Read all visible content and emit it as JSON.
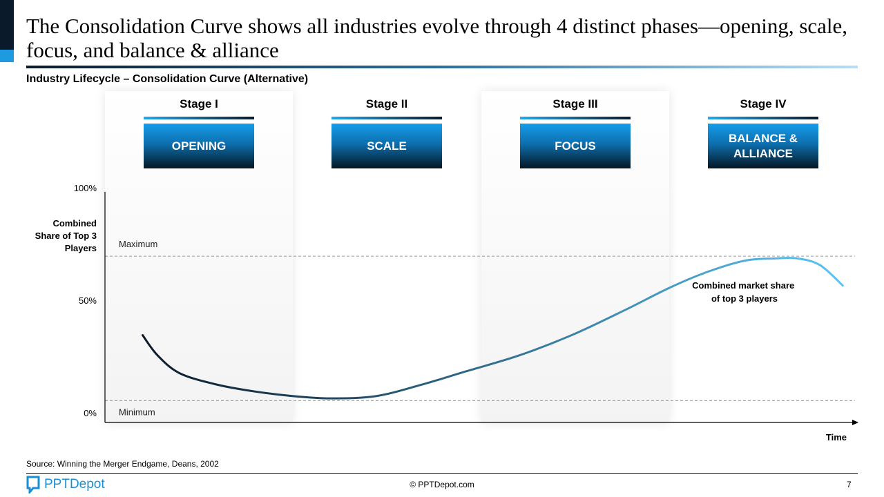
{
  "header": {
    "title": "The Consolidation Curve shows all industries evolve through 4 distinct phases—opening, scale, focus, and balance & alliance",
    "subtitle": "Industry Lifecycle – Consolidation Curve (Alternative)"
  },
  "stages": [
    {
      "label": "Stage I",
      "phase": "OPENING"
    },
    {
      "label": "Stage II",
      "phase": "SCALE"
    },
    {
      "label": "Stage III",
      "phase": "FOCUS"
    },
    {
      "label": "Stage IV",
      "phase": "BALANCE & ALLIANCE"
    }
  ],
  "chart_data": {
    "type": "line",
    "title": "Industry Lifecycle – Consolidation Curve (Alternative)",
    "ylabel": "Combined Share of Top 3 Players",
    "xlabel": "Time",
    "yticks": [
      "100%",
      "50%",
      "0%"
    ],
    "ylim": [
      0,
      100
    ],
    "xlim": [
      0,
      100
    ],
    "reference_lines": [
      {
        "label": "Maximum",
        "value": 70
      },
      {
        "label": "Minimum",
        "value": 6
      }
    ],
    "series": [
      {
        "name": "Combined market share of top 3 players",
        "x": [
          5,
          7,
          10,
          15,
          20,
          25,
          30,
          36,
          42,
          48,
          55,
          62,
          69,
          75,
          80,
          85,
          89,
          92,
          95,
          98
        ],
        "y": [
          35,
          26,
          18,
          13,
          10,
          8,
          7,
          8,
          13,
          19,
          26,
          35,
          46,
          56,
          63,
          68,
          69,
          69,
          66,
          57
        ]
      }
    ],
    "annotation": "Combined market share of top 3 players"
  },
  "footer": {
    "source": "Source: Winning the Merger Endgame, Deans, 2002",
    "logo_text": "PPTDepot",
    "copyright": "© PPTDepot.com",
    "page_number": "7"
  },
  "colors": {
    "curve_start": "#0b1a2b",
    "curve_end": "#5bc4f5",
    "accent": "#1e9be0"
  }
}
